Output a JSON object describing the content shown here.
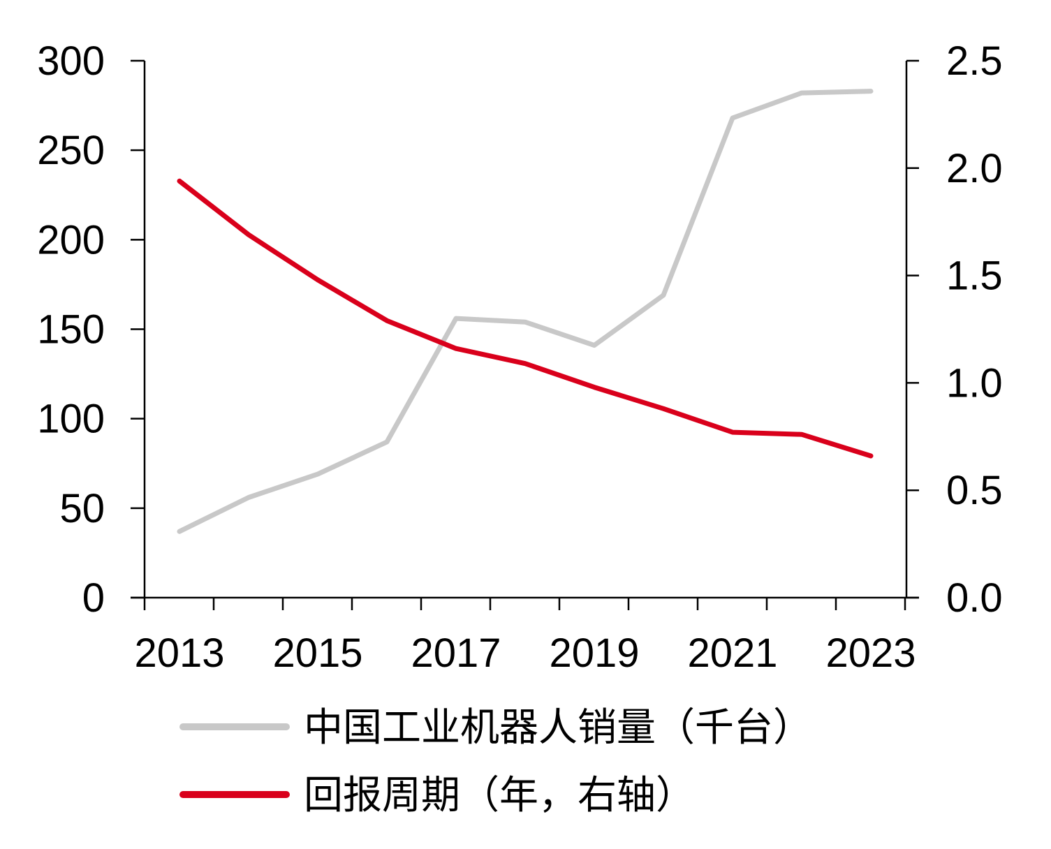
{
  "chart_data": {
    "type": "line",
    "title": "",
    "xlabel": "",
    "x": [
      2013,
      2014,
      2015,
      2016,
      2017,
      2018,
      2019,
      2020,
      2021,
      2022,
      2023
    ],
    "x_tick_labels": [
      "2013",
      "2015",
      "2017",
      "2019",
      "2021",
      "2023"
    ],
    "ylim_left": [
      0,
      300
    ],
    "yticks_left": [
      "0",
      "50",
      "100",
      "150",
      "200",
      "250",
      "300"
    ],
    "ylim_right": [
      0,
      2.5
    ],
    "yticks_right": [
      "0.0",
      "0.5",
      "1.0",
      "1.5",
      "2.0",
      "2.5"
    ],
    "series": [
      {
        "name": "中国工业机器人销量（千台）",
        "axis": "left",
        "color": "#c8c8c8",
        "values": [
          37,
          56,
          69,
          87,
          156,
          154,
          141,
          169,
          268,
          282,
          283
        ]
      },
      {
        "name": "回报周期（年，右轴）",
        "axis": "right",
        "color": "#d9001b",
        "values": [
          1.94,
          1.69,
          1.48,
          1.29,
          1.16,
          1.09,
          0.98,
          0.88,
          0.77,
          0.76,
          0.66
        ]
      }
    ],
    "legend_position": "bottom-left",
    "grid": false
  }
}
